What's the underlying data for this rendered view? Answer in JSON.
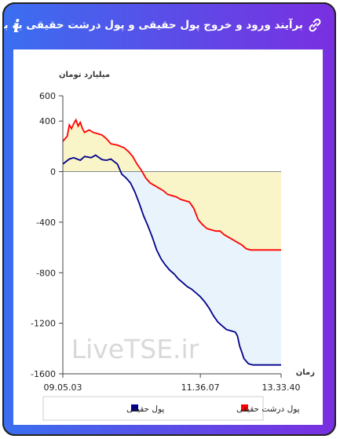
{
  "header": {
    "title": "برآیند ورود و خروج پول حقیقی و پول درشت حقیقی به بازار",
    "link_icon": "link-icon",
    "info_icon": "info-icon",
    "info_glyph": "i"
  },
  "watermark": "LiveTSE.ir",
  "colors": {
    "header_start": "#3a6ff0",
    "header_end": "#7a2fe0",
    "real_money": "#00008b",
    "big_real_money": "#ff0000",
    "fill_yellow": "#faf5c8",
    "fill_blue": "#e8f3fb"
  },
  "chart_data": {
    "type": "area",
    "ylabel": "میلیارد تومان",
    "xlabel": "زمان",
    "ylim": [
      -1600,
      600
    ],
    "yticks": [
      "600",
      "400",
      "0",
      "-400",
      "-800",
      "-1200",
      "-1600"
    ],
    "ytick_values": [
      600,
      400,
      0,
      -400,
      -800,
      -1200,
      -1600
    ],
    "xticks": [
      "09.05.03",
      "11.36.07",
      "13.33.40"
    ],
    "xtick_positions": [
      0,
      0.63,
      1
    ],
    "grid": false,
    "legend_position": "bottom",
    "series": [
      {
        "name": "پول حقیقی",
        "color": "#00008b",
        "t": [
          0,
          0.03,
          0.05,
          0.08,
          0.1,
          0.13,
          0.15,
          0.18,
          0.2,
          0.22,
          0.25,
          0.27,
          0.29,
          0.31,
          0.33,
          0.35,
          0.37,
          0.39,
          0.41,
          0.43,
          0.45,
          0.47,
          0.49,
          0.51,
          0.53,
          0.55,
          0.57,
          0.59,
          0.61,
          0.63,
          0.65,
          0.67,
          0.69,
          0.71,
          0.73,
          0.75,
          0.77,
          0.79,
          0.8,
          0.81,
          0.82,
          0.83,
          0.85,
          0.87,
          0.9,
          0.95,
          1
        ],
        "values": [
          60,
          100,
          110,
          90,
          120,
          110,
          130,
          95,
          90,
          100,
          60,
          -20,
          -50,
          -90,
          -160,
          -250,
          -350,
          -430,
          -520,
          -620,
          -690,
          -740,
          -780,
          -810,
          -850,
          -880,
          -910,
          -930,
          -960,
          -990,
          -1030,
          -1080,
          -1140,
          -1190,
          -1220,
          -1250,
          -1260,
          -1270,
          -1300,
          -1380,
          -1430,
          -1480,
          -1520,
          -1530,
          -1530,
          -1530,
          -1530
        ]
      },
      {
        "name": "پول درشت حقیقی",
        "color": "#ff0000",
        "t": [
          0,
          0.02,
          0.03,
          0.04,
          0.05,
          0.06,
          0.07,
          0.08,
          0.09,
          0.1,
          0.12,
          0.14,
          0.16,
          0.18,
          0.2,
          0.22,
          0.25,
          0.28,
          0.3,
          0.32,
          0.34,
          0.36,
          0.38,
          0.4,
          0.42,
          0.44,
          0.46,
          0.48,
          0.5,
          0.52,
          0.54,
          0.56,
          0.58,
          0.6,
          0.62,
          0.64,
          0.66,
          0.68,
          0.7,
          0.72,
          0.74,
          0.76,
          0.78,
          0.8,
          0.82,
          0.84,
          0.86,
          0.9,
          1
        ],
        "values": [
          240,
          280,
          370,
          340,
          380,
          410,
          360,
          390,
          340,
          310,
          330,
          310,
          300,
          290,
          260,
          220,
          210,
          190,
          160,
          120,
          60,
          10,
          -50,
          -90,
          -110,
          -130,
          -150,
          -180,
          -190,
          -200,
          -220,
          -230,
          -240,
          -290,
          -380,
          -420,
          -450,
          -460,
          -470,
          -470,
          -500,
          -520,
          -540,
          -560,
          -580,
          -610,
          -620,
          -620,
          -620
        ]
      }
    ]
  },
  "legend": {
    "real_money": "پول حقیقی",
    "big_real_money": "پول درشت حقیقی"
  }
}
